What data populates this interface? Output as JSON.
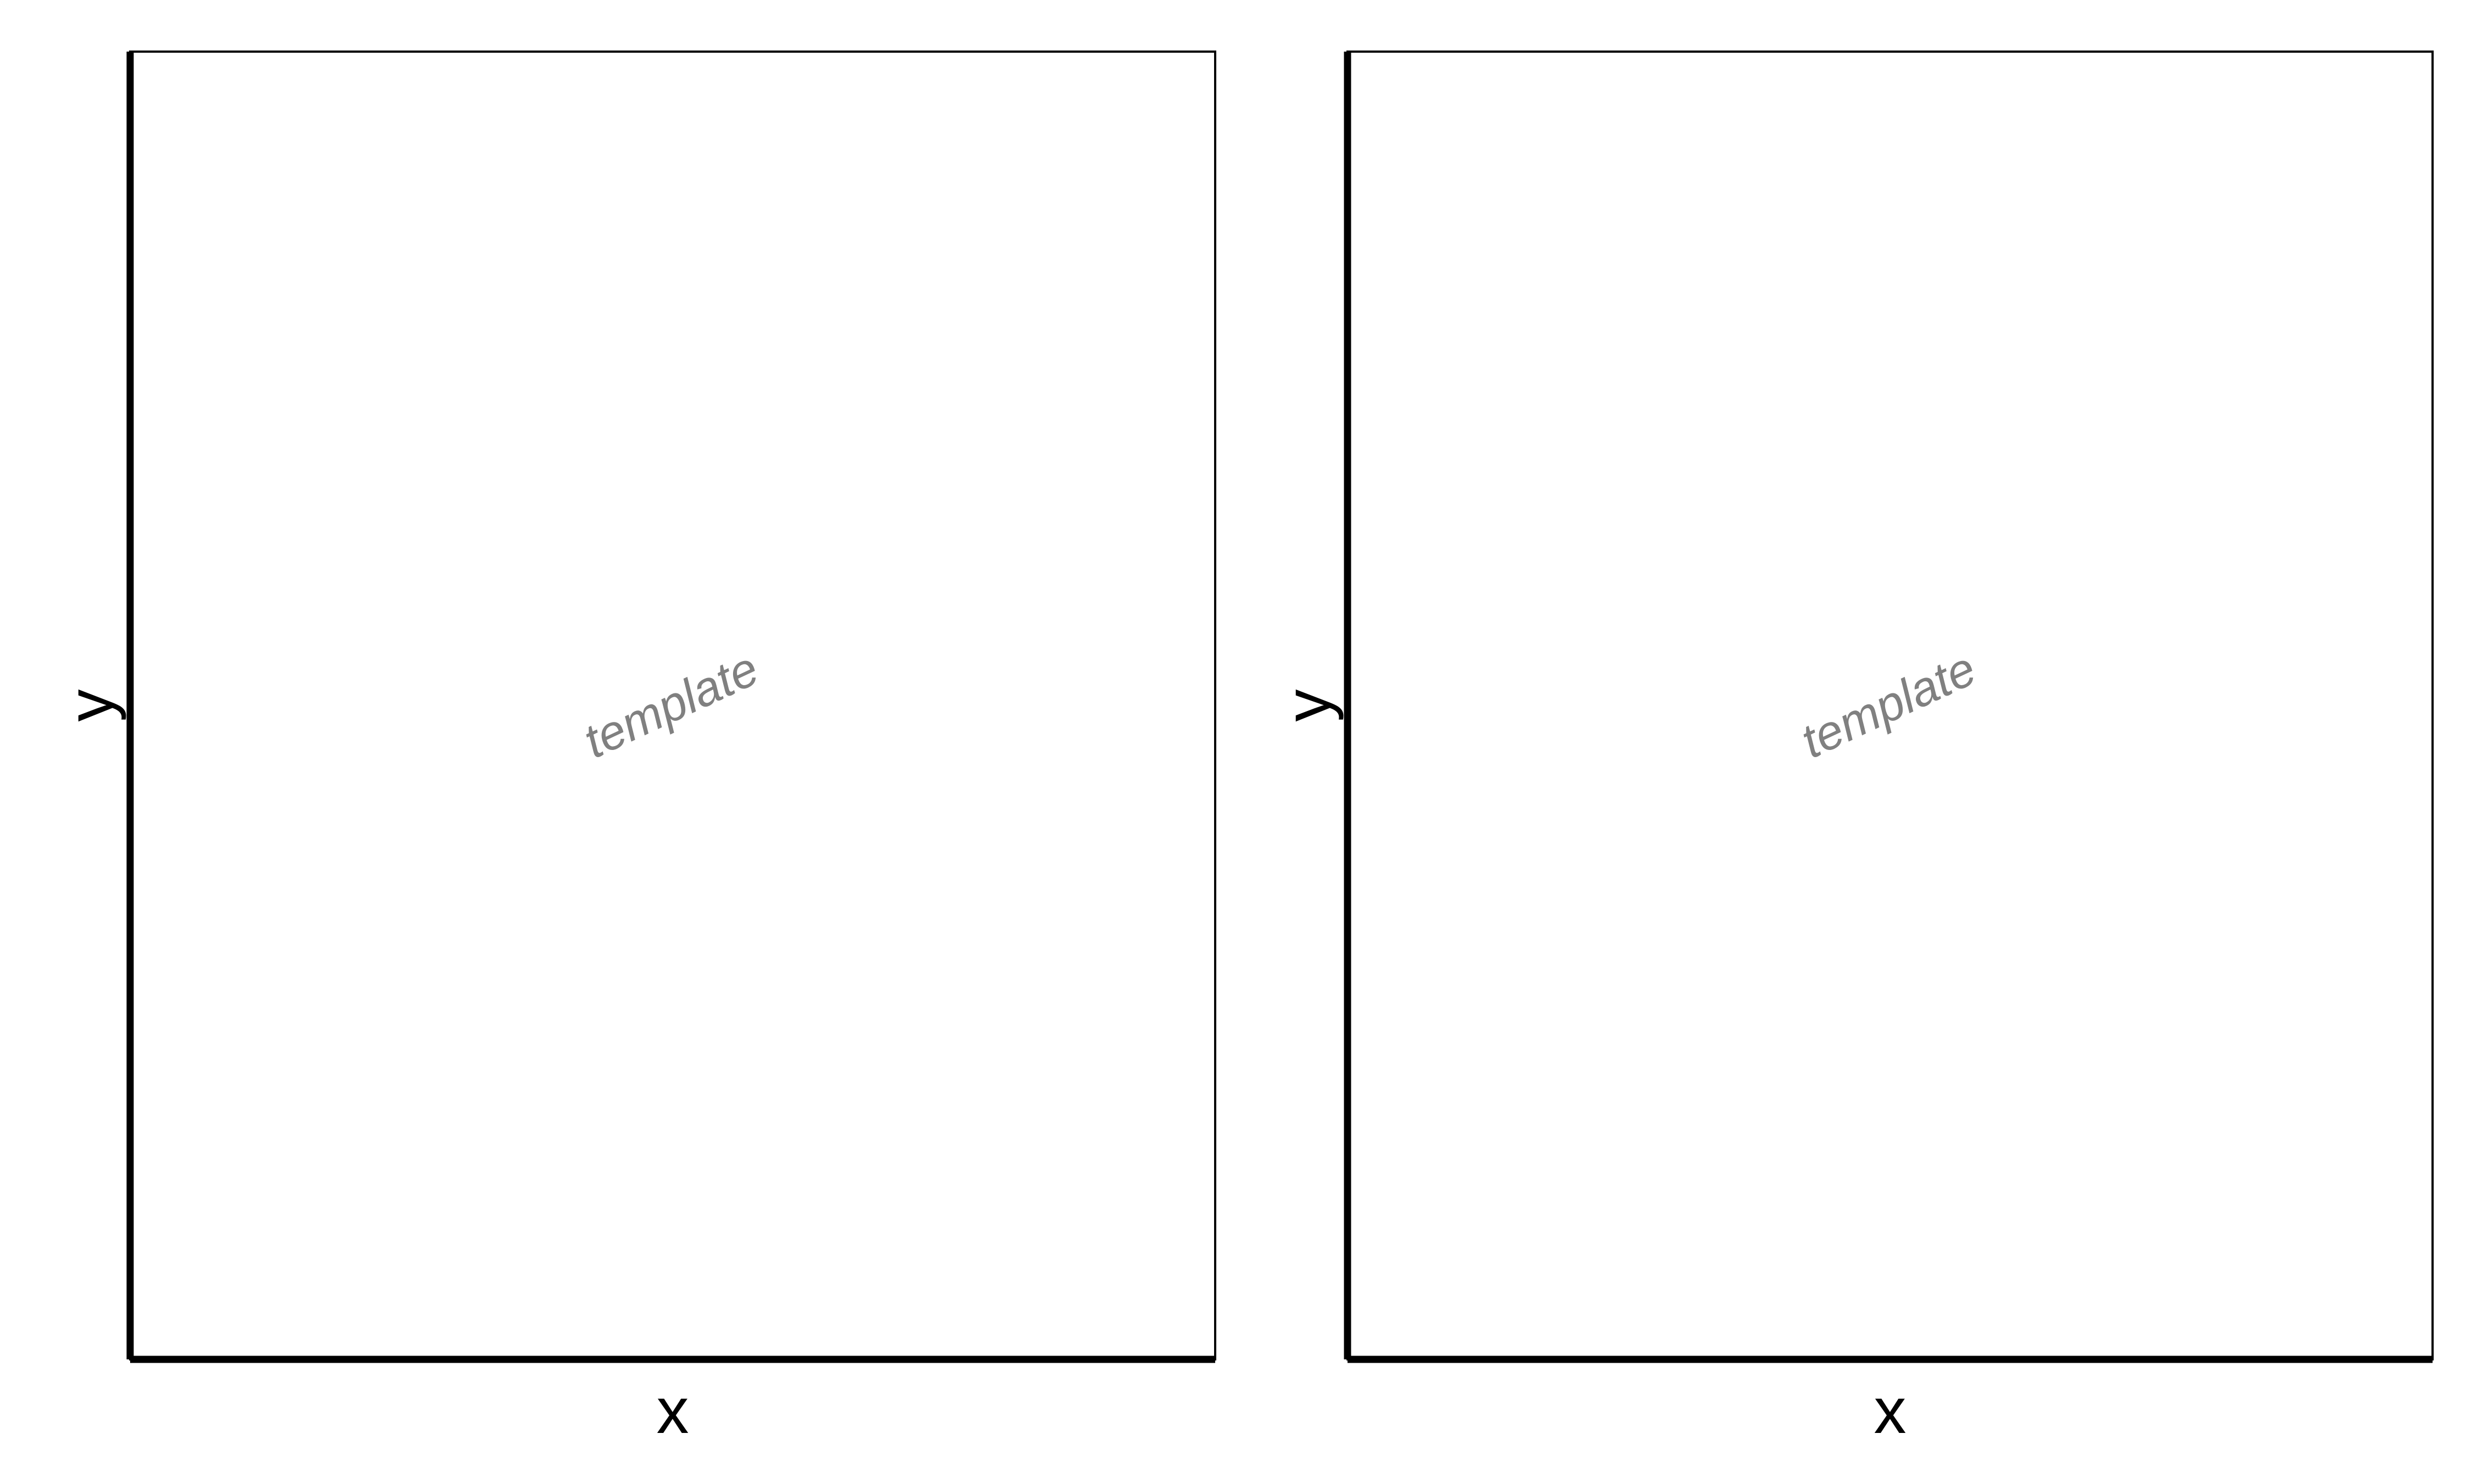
{
  "chart_data": [
    {
      "type": "scatter",
      "title": "",
      "xlabel": "x",
      "ylabel": "y",
      "series": [],
      "grid": false,
      "watermark": "template",
      "colors": {
        "axis": "#000000",
        "frame": "#000000",
        "watermark": "#808080",
        "background": "#ffffff"
      }
    },
    {
      "type": "scatter",
      "title": "",
      "xlabel": "x",
      "ylabel": "y",
      "series": [],
      "grid": false,
      "watermark": "template",
      "colors": {
        "axis": "#000000",
        "frame": "#000000",
        "watermark": "#808080",
        "background": "#ffffff"
      }
    }
  ]
}
